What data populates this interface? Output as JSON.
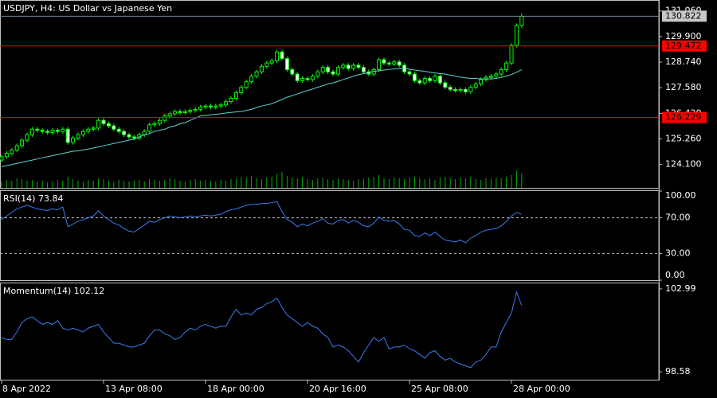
{
  "chart_data": [
    {
      "type": "candlestick",
      "title": "USDJPY, H4:  US Dollar vs Japanese Yen",
      "categories": [
        "8 Apr 2022",
        null,
        null,
        null,
        null,
        null,
        null,
        null,
        null,
        null,
        null,
        null,
        null,
        null,
        null,
        null,
        null,
        null,
        null,
        null,
        "13 Apr 08:00",
        null,
        null,
        null,
        null,
        null,
        null,
        null,
        null,
        null,
        null,
        null,
        null,
        null,
        null,
        null,
        null,
        null,
        null,
        null,
        "18 Apr 00:00",
        null,
        null,
        null,
        null,
        null,
        null,
        null,
        null,
        null,
        null,
        null,
        null,
        null,
        null,
        null,
        null,
        null,
        null,
        null,
        "20 Apr 16:00",
        null,
        null,
        null,
        null,
        null,
        null,
        null,
        null,
        null,
        null,
        null,
        null,
        null,
        null,
        null,
        null,
        null,
        null,
        null,
        "25 Apr 08:00",
        null,
        null,
        null,
        null,
        null,
        null,
        null,
        null,
        null,
        null,
        null,
        null,
        null,
        null,
        null,
        null,
        null,
        null,
        null,
        "28 Apr 00:00",
        null,
        null
      ],
      "open": [
        124.3,
        124.45,
        124.6,
        124.75,
        124.95,
        125.2,
        125.45,
        125.7,
        125.65,
        125.6,
        125.55,
        125.65,
        125.6,
        125.7,
        125.1,
        125.3,
        125.45,
        125.6,
        125.7,
        125.75,
        126.1,
        125.95,
        125.85,
        125.7,
        125.6,
        125.45,
        125.35,
        125.3,
        125.45,
        125.6,
        125.9,
        125.95,
        126.1,
        126.3,
        126.4,
        126.5,
        126.45,
        126.5,
        126.55,
        126.6,
        126.7,
        126.75,
        126.7,
        126.75,
        126.8,
        126.95,
        127.1,
        127.35,
        127.6,
        127.85,
        128.1,
        128.3,
        128.55,
        128.7,
        128.8,
        129.2,
        128.9,
        128.4,
        128.2,
        127.9,
        128.0,
        127.95,
        128.1,
        128.3,
        128.5,
        128.3,
        128.2,
        128.5,
        128.6,
        128.45,
        128.6,
        128.5,
        128.3,
        128.2,
        128.4,
        128.85,
        128.7,
        128.65,
        128.75,
        128.6,
        128.3,
        128.2,
        127.9,
        127.8,
        128.0,
        127.9,
        128.1,
        127.8,
        127.6,
        127.5,
        127.45,
        127.5,
        127.4,
        127.6,
        127.75,
        127.95,
        128.05,
        128.1,
        128.2,
        128.4,
        128.7,
        129.5,
        130.4
      ],
      "high": [
        124.55,
        124.7,
        124.85,
        125.05,
        125.3,
        125.55,
        125.8,
        125.8,
        125.75,
        125.7,
        125.75,
        125.75,
        125.8,
        125.8,
        125.4,
        125.55,
        125.7,
        125.8,
        125.85,
        126.2,
        126.2,
        126.05,
        125.95,
        125.8,
        125.7,
        125.55,
        125.45,
        125.55,
        125.7,
        126.0,
        126.05,
        126.2,
        126.4,
        126.5,
        126.6,
        126.6,
        126.6,
        126.65,
        126.7,
        126.8,
        126.85,
        126.85,
        126.85,
        126.9,
        127.05,
        127.2,
        127.45,
        127.7,
        127.95,
        128.2,
        128.4,
        128.65,
        128.8,
        128.9,
        129.3,
        129.3,
        129.0,
        128.5,
        128.3,
        128.1,
        128.1,
        128.2,
        128.4,
        128.6,
        128.6,
        128.4,
        128.6,
        128.7,
        128.7,
        128.7,
        128.7,
        128.6,
        128.4,
        128.5,
        128.95,
        128.95,
        128.8,
        128.85,
        128.85,
        128.7,
        128.4,
        128.3,
        128.0,
        128.1,
        128.1,
        128.2,
        128.2,
        127.9,
        127.7,
        127.6,
        127.6,
        127.6,
        127.7,
        127.85,
        128.05,
        128.15,
        128.2,
        128.3,
        128.5,
        128.8,
        129.6,
        130.5,
        130.95
      ],
      "low": [
        124.2,
        124.35,
        124.5,
        124.65,
        124.85,
        125.1,
        125.35,
        125.55,
        125.5,
        125.45,
        125.45,
        125.5,
        125.5,
        125.0,
        125.0,
        125.2,
        125.35,
        125.5,
        125.6,
        125.65,
        125.85,
        125.75,
        125.6,
        125.5,
        125.35,
        125.25,
        125.2,
        125.2,
        125.35,
        125.5,
        125.8,
        125.85,
        126.0,
        126.2,
        126.3,
        126.35,
        126.35,
        126.4,
        126.45,
        126.5,
        126.6,
        126.6,
        126.6,
        126.65,
        126.7,
        126.85,
        127.0,
        127.25,
        127.5,
        127.75,
        128.0,
        128.2,
        128.45,
        128.6,
        128.7,
        128.8,
        128.3,
        128.1,
        127.8,
        127.8,
        127.85,
        127.85,
        128.0,
        128.2,
        128.2,
        128.1,
        128.1,
        128.4,
        128.35,
        128.35,
        128.4,
        128.2,
        128.1,
        128.1,
        128.3,
        128.6,
        128.55,
        128.55,
        128.5,
        128.2,
        128.1,
        127.8,
        127.7,
        127.7,
        127.8,
        127.8,
        127.7,
        127.5,
        127.4,
        127.35,
        127.35,
        127.3,
        127.3,
        127.5,
        127.65,
        127.85,
        127.95,
        128.0,
        128.1,
        128.3,
        128.6,
        129.4,
        130.3
      ],
      "close": [
        124.45,
        124.6,
        124.75,
        124.95,
        125.2,
        125.45,
        125.7,
        125.65,
        125.6,
        125.55,
        125.65,
        125.6,
        125.7,
        125.1,
        125.3,
        125.45,
        125.6,
        125.7,
        125.75,
        126.1,
        125.95,
        125.85,
        125.7,
        125.6,
        125.45,
        125.35,
        125.3,
        125.45,
        125.6,
        125.9,
        125.95,
        126.1,
        126.3,
        126.4,
        126.5,
        126.45,
        126.5,
        126.55,
        126.6,
        126.7,
        126.75,
        126.7,
        126.75,
        126.8,
        126.95,
        127.1,
        127.35,
        127.6,
        127.85,
        128.1,
        128.3,
        128.55,
        128.7,
        128.8,
        129.2,
        128.9,
        128.4,
        128.2,
        127.9,
        128.0,
        127.95,
        128.1,
        128.3,
        128.5,
        128.3,
        128.2,
        128.5,
        128.6,
        128.45,
        128.6,
        128.5,
        128.3,
        128.2,
        128.4,
        128.85,
        128.7,
        128.65,
        128.75,
        128.6,
        128.3,
        128.2,
        127.9,
        127.8,
        128.0,
        127.9,
        128.1,
        127.8,
        127.6,
        127.5,
        127.45,
        127.5,
        127.4,
        127.6,
        127.75,
        127.95,
        128.05,
        128.1,
        128.2,
        128.4,
        128.7,
        129.5,
        130.4,
        130.82
      ],
      "up_color": "#000000",
      "down_color": "#ffffff",
      "candle_outline": "#00ff00",
      "ma": {
        "color": "#5fd3d3",
        "values": [
          124.0,
          124.05,
          124.1,
          124.15,
          124.2,
          124.25,
          124.3,
          124.35,
          124.4,
          124.45,
          124.5,
          124.55,
          124.6,
          124.65,
          124.7,
          124.72,
          124.76,
          124.8,
          124.85,
          124.9,
          124.95,
          125.0,
          125.05,
          125.1,
          125.15,
          125.2,
          125.25,
          125.35,
          125.45,
          125.5,
          125.6,
          125.65,
          125.7,
          125.8,
          125.85,
          125.95,
          126.0,
          126.1,
          126.2,
          126.3,
          126.32,
          126.35,
          126.38,
          126.4,
          126.43,
          126.46,
          126.48,
          126.5,
          126.55,
          126.6,
          126.68,
          126.75,
          126.8,
          126.85,
          126.95,
          127.05,
          127.15,
          127.22,
          127.3,
          127.38,
          127.45,
          127.52,
          127.6,
          127.67,
          127.75,
          127.8,
          127.87,
          127.95,
          128.02,
          128.1,
          128.17,
          128.22,
          128.27,
          128.32,
          128.35,
          128.38,
          128.41,
          128.43,
          128.45,
          128.45,
          128.42,
          128.38,
          128.35,
          128.32,
          128.28,
          128.25,
          128.22,
          128.2,
          128.15,
          128.1,
          128.06,
          128.03,
          128.0,
          128.0,
          127.98,
          127.98,
          127.98,
          128.0,
          128.05,
          128.1,
          128.18,
          128.28,
          128.4
        ]
      },
      "volume": {
        "color": "#00b000",
        "values": [
          8000,
          10000,
          9000,
          12000,
          11000,
          9000,
          10000,
          8000,
          9000,
          7000,
          8000,
          10000,
          9000,
          14000,
          11000,
          9000,
          8000,
          10000,
          9000,
          12000,
          11000,
          9000,
          8000,
          10000,
          9000,
          8000,
          9000,
          10000,
          8000,
          11000,
          10000,
          9000,
          10000,
          12000,
          11000,
          9000,
          8000,
          10000,
          11000,
          9000,
          10000,
          9000,
          8000,
          10000,
          9000,
          11000,
          12000,
          14000,
          13000,
          15000,
          12000,
          11000,
          13000,
          14000,
          18000,
          20000,
          15000,
          13000,
          12000,
          14000,
          11000,
          10000,
          12000,
          13000,
          11000,
          10000,
          12000,
          11000,
          10000,
          9000,
          11000,
          12000,
          13000,
          14000,
          16000,
          12000,
          11000,
          13000,
          12000,
          11000,
          13000,
          14000,
          12000,
          11000,
          12000,
          10000,
          13000,
          14000,
          12000,
          11000,
          13000,
          12000,
          14000,
          11000,
          10000,
          12000,
          11000,
          13000,
          12000,
          14000,
          16000,
          22000,
          18000
        ]
      },
      "levels": [
        129.472,
        126.229
      ],
      "level_color": "#ff0000",
      "last_price": 130.822,
      "last_price_color": "#c8c8c8",
      "ylim": [
        123.04,
        131.52
      ],
      "yticks": [
        {
          "value": 131.06,
          "label": "131.060"
        },
        {
          "value": 129.9,
          "label": "129.900"
        },
        {
          "value": 128.74,
          "label": "128.740"
        },
        {
          "value": 127.58,
          "label": "127.580"
        },
        {
          "value": 126.42,
          "label": "126.420"
        },
        {
          "value": 125.26,
          "label": "125.260"
        },
        {
          "value": 124.1,
          "label": "124.100"
        }
      ]
    },
    {
      "type": "line",
      "title": "RSI(14) 73.84",
      "series": [
        {
          "color": "#3a7bf0",
          "values": [
            68,
            72,
            76,
            80,
            82,
            84,
            82,
            80,
            79,
            78,
            80,
            79,
            82,
            60,
            63,
            66,
            68,
            70,
            72,
            78,
            72,
            68,
            64,
            62,
            58,
            55,
            54,
            58,
            62,
            66,
            65,
            68,
            70,
            72,
            71,
            70,
            71,
            72,
            71,
            72,
            73,
            72,
            73,
            74,
            77,
            79,
            80,
            82,
            84,
            85,
            85,
            86,
            86,
            87,
            88,
            77,
            68,
            65,
            60,
            63,
            61,
            64,
            66,
            69,
            64,
            63,
            67,
            68,
            64,
            67,
            65,
            61,
            60,
            64,
            71,
            67,
            66,
            67,
            63,
            57,
            56,
            50,
            49,
            53,
            50,
            54,
            49,
            45,
            44,
            43,
            45,
            42,
            47,
            50,
            54,
            56,
            57,
            58,
            61,
            66,
            72,
            76,
            73.84
          ]
        }
      ],
      "levels": [
        70,
        30
      ],
      "ylim": [
        0,
        100
      ],
      "yticks": [
        {
          "value": 100,
          "label": "100.00"
        },
        {
          "value": 70,
          "label": "70.00"
        },
        {
          "value": 30,
          "label": "30.00"
        },
        {
          "value": 0,
          "label": "0.00"
        }
      ]
    },
    {
      "type": "line",
      "title": "Momentum(14) 102.12",
      "series": [
        {
          "color": "#3a7bf0",
          "values": [
            100.4,
            100.3,
            100.3,
            100.7,
            101.2,
            101.4,
            101.5,
            101.3,
            101.1,
            101.2,
            101.1,
            101.3,
            100.9,
            100.8,
            100.9,
            100.8,
            100.7,
            100.9,
            101.0,
            101.1,
            100.7,
            100.4,
            100.1,
            100.1,
            100.0,
            99.9,
            99.9,
            100.0,
            100.1,
            100.5,
            100.8,
            100.8,
            100.6,
            100.5,
            100.3,
            100.4,
            100.7,
            100.9,
            100.8,
            101.0,
            101.1,
            101.0,
            100.9,
            101.0,
            101.0,
            101.5,
            101.9,
            101.6,
            101.7,
            101.6,
            101.9,
            102.0,
            102.2,
            102.3,
            102.5,
            102.0,
            101.6,
            101.4,
            101.2,
            101.0,
            101.2,
            101.0,
            100.9,
            100.6,
            100.4,
            99.9,
            100.0,
            99.9,
            99.7,
            99.4,
            99.1,
            99.6,
            100.0,
            100.4,
            100.2,
            100.4,
            99.8,
            99.9,
            99.9,
            100.0,
            99.8,
            99.7,
            99.5,
            99.3,
            99.6,
            99.7,
            99.4,
            99.2,
            99.3,
            99.1,
            99.0,
            98.9,
            98.8,
            99.1,
            99.2,
            99.5,
            99.9,
            99.9,
            100.7,
            101.2,
            101.7,
            102.82,
            102.12
          ]
        }
      ],
      "ylim": [
        98.16,
        103.28
      ],
      "yticks": [
        102.99,
        98.58
      ]
    }
  ]
}
